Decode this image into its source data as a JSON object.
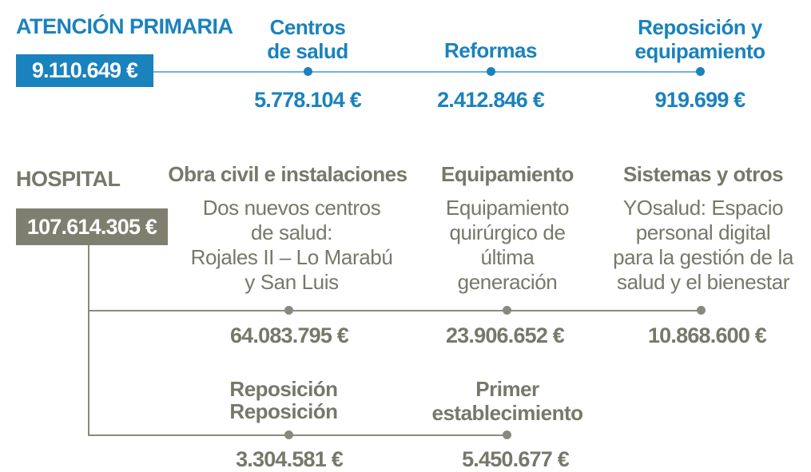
{
  "primaria": {
    "title": "ATENCIÓN PRIMARIA",
    "total": "9.110.649 €",
    "items": [
      {
        "head_line1": "Centros",
        "head_line2": "de salud",
        "amount": "5.778.104 €"
      },
      {
        "head_line1": "Reformas",
        "head_line2": "",
        "amount": "2.412.846 €"
      },
      {
        "head_line1": "Reposición y",
        "head_line2": "equipamiento",
        "amount": "919.699 €"
      }
    ]
  },
  "hospital": {
    "title": "HOSPITAL",
    "total": "107.614.305 €",
    "items": [
      {
        "head": "Obra civil e instalaciones",
        "desc": [
          "Dos nuevos centros",
          "de salud:",
          "Rojales II – Lo Marabú",
          "y San Luis"
        ],
        "amount": "64.083.795 €"
      },
      {
        "head": "Equipamiento",
        "desc": [
          "Equipamiento",
          "quirúrgico de",
          "última",
          "generación"
        ],
        "amount": "23.906.652 €"
      },
      {
        "head": "Sistemas y otros",
        "desc": [
          "YOsalud: Espacio",
          "personal digital",
          "para la gestión de la",
          "salud y el bienestar"
        ],
        "amount": "10.868.600 €"
      }
    ],
    "items2": [
      {
        "head_line1": "Reposición",
        "head_line2": "Reposición",
        "amount": "3.304.581 €"
      },
      {
        "head_line1": "Primer",
        "head_line2": "establecimiento",
        "amount": "5.450.677 €"
      }
    ]
  },
  "colors": {
    "primary_blue": "#1a82bd",
    "hospital_grey": "#7f7f6f"
  }
}
